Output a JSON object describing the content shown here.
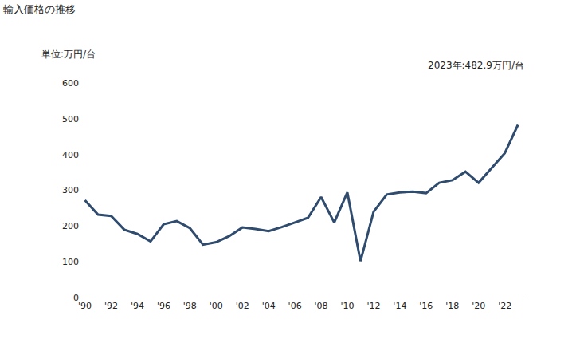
{
  "chart_data": {
    "type": "line",
    "title": "輸入価格の推移",
    "y_label": "単位:万円/台",
    "annotations": [
      "2023年:482.9万円/台"
    ],
    "x": [
      1990,
      1991,
      1992,
      1993,
      1994,
      1995,
      1996,
      1997,
      1998,
      1999,
      2000,
      2001,
      2002,
      2003,
      2004,
      2005,
      2006,
      2007,
      2008,
      2009,
      2010,
      2011,
      2012,
      2013,
      2014,
      2015,
      2016,
      2017,
      2018,
      2019,
      2020,
      2021,
      2022,
      2023
    ],
    "values": [
      272,
      232,
      228,
      190,
      178,
      157,
      205,
      214,
      194,
      148,
      155,
      172,
      196,
      192,
      186,
      197,
      210,
      223,
      281,
      210,
      294,
      102,
      240,
      288,
      294,
      296,
      292,
      321,
      328,
      352,
      321,
      362,
      404,
      482.9
    ],
    "color": "#2f4b6e",
    "xlim": [
      1989.6,
      2023.6
    ],
    "xticks": [
      {
        "value": 1990,
        "label": "'90"
      },
      {
        "value": 1992,
        "label": "'92"
      },
      {
        "value": 1994,
        "label": "'94"
      },
      {
        "value": 1996,
        "label": "'96"
      },
      {
        "value": 1998,
        "label": "'98"
      },
      {
        "value": 2000,
        "label": "'00"
      },
      {
        "value": 2002,
        "label": "'02"
      },
      {
        "value": 2004,
        "label": "'04"
      },
      {
        "value": 2006,
        "label": "'06"
      },
      {
        "value": 2008,
        "label": "'08"
      },
      {
        "value": 2010,
        "label": "'10"
      },
      {
        "value": 2012,
        "label": "'12"
      },
      {
        "value": 2014,
        "label": "'14"
      },
      {
        "value": 2016,
        "label": "'16"
      },
      {
        "value": 2018,
        "label": "'18"
      },
      {
        "value": 2020,
        "label": "'20"
      },
      {
        "value": 2022,
        "label": "'22"
      }
    ],
    "ylim": [
      0,
      600
    ],
    "yticks": [
      0,
      100,
      200,
      300,
      400,
      500,
      600
    ],
    "grid": false
  }
}
